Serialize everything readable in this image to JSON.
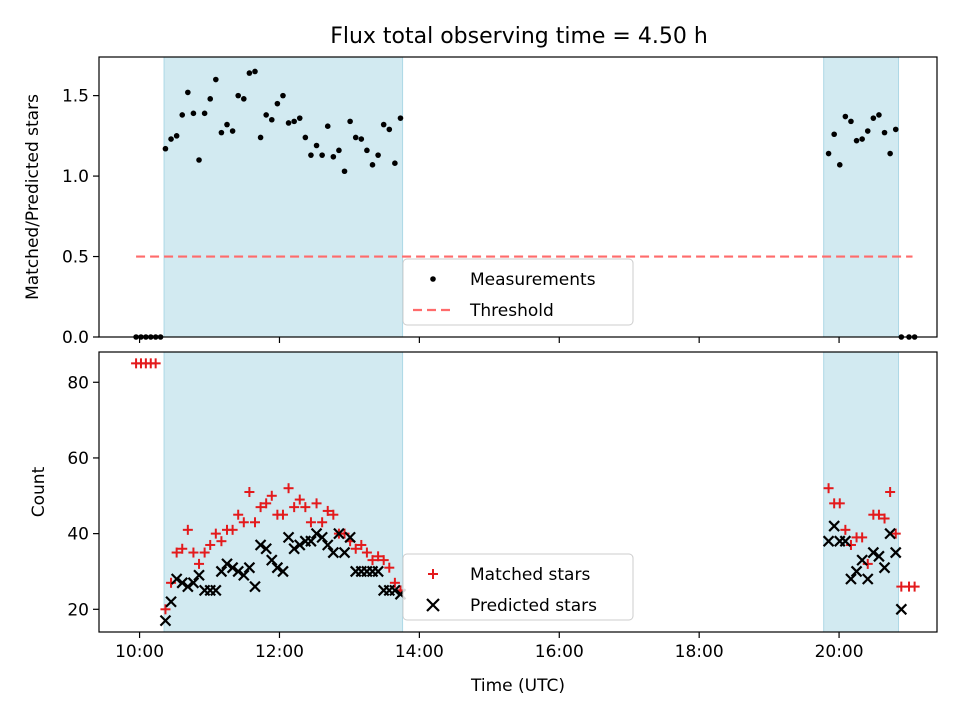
{
  "figure_title": "Flux total observing time = 4.50 h",
  "colors": {
    "span": "#add8e6",
    "measurement": "#000000",
    "threshold": "#ff6b6b",
    "matched": "#e31a1c",
    "predicted": "#000000"
  },
  "chart_data": [
    {
      "type": "scatter",
      "ylabel": "Matched/Predicted stars",
      "xlim": [
        9.42,
        21.4
      ],
      "ylim": [
        0,
        1.74
      ],
      "yticks": [
        0.0,
        0.5,
        1.0,
        1.5
      ],
      "ytick_labels": [
        "0.0",
        "0.5",
        "1.0",
        "1.5"
      ],
      "observing_windows": [
        [
          10.35,
          13.76
        ],
        [
          19.78,
          20.85
        ]
      ],
      "threshold": {
        "value": 0.5,
        "x_range": [
          9.95,
          21.05
        ]
      },
      "legend": {
        "position": "lower center",
        "entries": [
          "Measurements",
          "Threshold"
        ]
      },
      "series": [
        {
          "name": "Measurements",
          "marker": "dot",
          "x": [
            9.95,
            10.02,
            10.09,
            10.16,
            10.23,
            10.3,
            10.37,
            10.45,
            10.53,
            10.61,
            10.69,
            10.77,
            10.85,
            10.93,
            11.01,
            11.09,
            11.17,
            11.25,
            11.33,
            11.41,
            11.49,
            11.57,
            11.65,
            11.73,
            11.81,
            11.89,
            11.97,
            12.05,
            12.13,
            12.21,
            12.29,
            12.37,
            12.45,
            12.53,
            12.61,
            12.69,
            12.77,
            12.85,
            12.93,
            13.01,
            13.09,
            13.17,
            13.25,
            13.33,
            13.41,
            13.49,
            13.57,
            13.65,
            13.73,
            19.85,
            19.93,
            20.01,
            20.09,
            20.17,
            20.25,
            20.33,
            20.41,
            20.49,
            20.57,
            20.65,
            20.73,
            20.81,
            20.89,
            21.0,
            21.08
          ],
          "y": [
            0.0,
            0.0,
            0.0,
            0.0,
            0.0,
            0.0,
            1.17,
            1.23,
            1.25,
            1.38,
            1.52,
            1.39,
            1.1,
            1.39,
            1.48,
            1.6,
            1.27,
            1.32,
            1.28,
            1.5,
            1.48,
            1.64,
            1.65,
            1.24,
            1.38,
            1.35,
            1.45,
            1.5,
            1.33,
            1.34,
            1.36,
            1.24,
            1.13,
            1.19,
            1.13,
            1.31,
            1.12,
            1.16,
            1.03,
            1.34,
            1.24,
            1.23,
            1.16,
            1.07,
            1.13,
            1.32,
            1.29,
            1.08,
            1.36,
            1.14,
            1.26,
            1.07,
            1.37,
            1.34,
            1.22,
            1.23,
            1.28,
            1.36,
            1.38,
            1.27,
            1.14,
            1.29,
            0.0,
            0.0,
            0.0
          ]
        }
      ]
    },
    {
      "type": "scatter",
      "xlabel": "Time (UTC)",
      "ylabel": "Count",
      "xlim": [
        9.42,
        21.4
      ],
      "ylim": [
        14,
        88
      ],
      "yticks": [
        20,
        40,
        60,
        80
      ],
      "ytick_labels": [
        "20",
        "40",
        "60",
        "80"
      ],
      "xticks": [
        10,
        12,
        14,
        16,
        18,
        20
      ],
      "xtick_labels": [
        "10:00",
        "12:00",
        "14:00",
        "16:00",
        "18:00",
        "20:00"
      ],
      "observing_windows": [
        [
          10.35,
          13.76
        ],
        [
          19.78,
          20.85
        ]
      ],
      "legend": {
        "position": "lower center",
        "entries": [
          "Matched stars",
          "Predicted stars"
        ]
      },
      "series": [
        {
          "name": "Matched stars",
          "marker": "plus",
          "x": [
            9.95,
            10.02,
            10.09,
            10.16,
            10.23,
            10.37,
            10.45,
            10.53,
            10.61,
            10.69,
            10.77,
            10.85,
            10.93,
            11.01,
            11.09,
            11.17,
            11.25,
            11.33,
            11.41,
            11.49,
            11.57,
            11.65,
            11.73,
            11.81,
            11.89,
            11.97,
            12.05,
            12.13,
            12.21,
            12.29,
            12.37,
            12.45,
            12.53,
            12.61,
            12.69,
            12.77,
            12.85,
            12.93,
            13.01,
            13.09,
            13.17,
            13.25,
            13.33,
            13.41,
            13.49,
            13.57,
            13.65,
            13.73,
            19.85,
            19.93,
            20.01,
            20.09,
            20.17,
            20.25,
            20.33,
            20.41,
            20.49,
            20.57,
            20.65,
            20.73,
            20.81,
            20.89,
            21.0,
            21.08
          ],
          "y": [
            85,
            85,
            85,
            85,
            85,
            20,
            27,
            35,
            36,
            41,
            35,
            32,
            35,
            37,
            40,
            38,
            41,
            41,
            45,
            43,
            51,
            43,
            47,
            48,
            50,
            45,
            45,
            52,
            47,
            49,
            47,
            43,
            48,
            43,
            46,
            45,
            40,
            40,
            38,
            36,
            37,
            35,
            33,
            34,
            33,
            31,
            27,
            25,
            52,
            48,
            48,
            41,
            37,
            39,
            39,
            32,
            45,
            45,
            44,
            51,
            40,
            26,
            26,
            26
          ]
        },
        {
          "name": "Predicted stars",
          "marker": "x",
          "x": [
            10.37,
            10.45,
            10.53,
            10.61,
            10.69,
            10.77,
            10.85,
            10.93,
            11.01,
            11.09,
            11.17,
            11.25,
            11.33,
            11.41,
            11.49,
            11.57,
            11.65,
            11.73,
            11.81,
            11.89,
            11.97,
            12.05,
            12.13,
            12.21,
            12.29,
            12.37,
            12.45,
            12.53,
            12.61,
            12.69,
            12.77,
            12.85,
            12.93,
            13.01,
            13.09,
            13.17,
            13.25,
            13.33,
            13.41,
            13.49,
            13.57,
            13.65,
            13.73,
            19.85,
            19.93,
            20.01,
            20.09,
            20.17,
            20.25,
            20.33,
            20.41,
            20.49,
            20.57,
            20.65,
            20.73,
            20.81,
            20.89
          ],
          "y": [
            17,
            22,
            28,
            27,
            26,
            27,
            29,
            25,
            25,
            25,
            30,
            32,
            31,
            30,
            29,
            31,
            26,
            37,
            36,
            33,
            31,
            30,
            39,
            36,
            37,
            38,
            38,
            40,
            39,
            37,
            35,
            40,
            35,
            39,
            30,
            30,
            30,
            30,
            30,
            25,
            25,
            25,
            24,
            38,
            42,
            38,
            38,
            28,
            30,
            33,
            28,
            35,
            34,
            31,
            40,
            35,
            20
          ]
        }
      ]
    }
  ]
}
